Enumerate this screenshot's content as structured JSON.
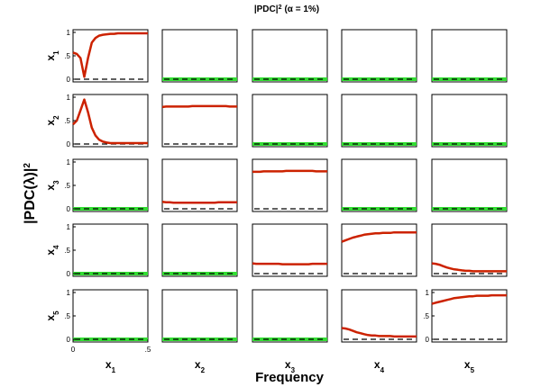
{
  "chart_data": {
    "type": "line",
    "title": "|PDC|",
    "title_superscript": "2",
    "title_suffix": "(α = 1%)",
    "ylabel": "|PDC(λ)|",
    "ylabel_superscript": "2",
    "xlabel": "Frequency",
    "variables": [
      "x",
      "x",
      "x",
      "x",
      "x"
    ],
    "variable_subscripts": [
      "1",
      "2",
      "3",
      "4",
      "5"
    ],
    "xlim": [
      0,
      0.5
    ],
    "ylim": [
      0,
      1
    ],
    "x_ticks": [
      "0",
      ".5"
    ],
    "y_ticks": [
      "0",
      ".5",
      "1"
    ],
    "grid": false,
    "colors": {
      "pdc_significant": "#cc2200",
      "pdc_nonsignificant": "#33dd33",
      "threshold": "#000000"
    },
    "x": [
      0,
      0.025,
      0.05,
      0.075,
      0.1,
      0.125,
      0.15,
      0.175,
      0.2,
      0.225,
      0.25,
      0.275,
      0.3,
      0.325,
      0.35,
      0.375,
      0.4,
      0.425,
      0.45,
      0.475,
      0.5
    ],
    "panels": [
      [
        {
          "significant": true,
          "threshold": 0.0,
          "values": [
            0.57,
            0.54,
            0.45,
            0.05,
            0.45,
            0.78,
            0.88,
            0.93,
            0.95,
            0.96,
            0.97,
            0.97,
            0.98,
            0.98,
            0.98,
            0.98,
            0.98,
            0.98,
            0.98,
            0.98,
            0.98
          ]
        },
        {
          "significant": false,
          "threshold": 0.0,
          "values": [
            0.0,
            0.0,
            0.0,
            0.0,
            0.0,
            0.0,
            0.0,
            0.0,
            0.0,
            0.0,
            0.0,
            0.0,
            0.0,
            0.0,
            0.0,
            0.0,
            0.0,
            0.0,
            0.0,
            0.0,
            0.0
          ]
        },
        {
          "significant": false,
          "threshold": 0.0,
          "values": [
            0.0,
            0.0,
            0.0,
            0.0,
            0.0,
            0.0,
            0.0,
            0.0,
            0.0,
            0.0,
            0.0,
            0.0,
            0.0,
            0.0,
            0.0,
            0.0,
            0.0,
            0.0,
            0.0,
            0.0,
            0.0
          ]
        },
        {
          "significant": false,
          "threshold": 0.0,
          "values": [
            0.0,
            0.0,
            0.0,
            0.0,
            0.0,
            0.0,
            0.0,
            0.0,
            0.0,
            0.0,
            0.0,
            0.0,
            0.0,
            0.0,
            0.0,
            0.0,
            0.0,
            0.0,
            0.0,
            0.0,
            0.0
          ]
        },
        {
          "significant": false,
          "threshold": 0.0,
          "values": [
            0.0,
            0.0,
            0.0,
            0.0,
            0.0,
            0.0,
            0.0,
            0.0,
            0.0,
            0.0,
            0.0,
            0.0,
            0.0,
            0.0,
            0.0,
            0.0,
            0.0,
            0.0,
            0.0,
            0.0,
            0.0
          ]
        }
      ],
      [
        {
          "significant": true,
          "threshold": 0.0,
          "values": [
            0.42,
            0.5,
            0.72,
            0.95,
            0.68,
            0.35,
            0.18,
            0.09,
            0.05,
            0.03,
            0.02,
            0.02,
            0.02,
            0.02,
            0.02,
            0.02,
            0.02,
            0.02,
            0.02,
            0.02,
            0.02
          ]
        },
        {
          "significant": true,
          "threshold": 0.0,
          "values": [
            0.79,
            0.8,
            0.8,
            0.8,
            0.8,
            0.8,
            0.8,
            0.8,
            0.81,
            0.81,
            0.81,
            0.81,
            0.81,
            0.81,
            0.81,
            0.81,
            0.81,
            0.81,
            0.8,
            0.8,
            0.8
          ]
        },
        {
          "significant": false,
          "threshold": 0.0,
          "values": [
            0.0,
            0.0,
            0.0,
            0.0,
            0.0,
            0.0,
            0.0,
            0.0,
            0.0,
            0.0,
            0.0,
            0.0,
            0.0,
            0.0,
            0.0,
            0.0,
            0.0,
            0.0,
            0.0,
            0.0,
            0.0
          ]
        },
        {
          "significant": false,
          "threshold": 0.0,
          "values": [
            0.0,
            0.0,
            0.0,
            0.0,
            0.0,
            0.0,
            0.0,
            0.0,
            0.0,
            0.0,
            0.0,
            0.0,
            0.0,
            0.0,
            0.0,
            0.0,
            0.0,
            0.0,
            0.0,
            0.0,
            0.0
          ]
        },
        {
          "significant": false,
          "threshold": 0.0,
          "values": [
            0.0,
            0.0,
            0.0,
            0.0,
            0.0,
            0.0,
            0.0,
            0.0,
            0.0,
            0.0,
            0.0,
            0.0,
            0.0,
            0.0,
            0.0,
            0.0,
            0.0,
            0.0,
            0.0,
            0.0,
            0.0
          ]
        }
      ],
      [
        {
          "significant": false,
          "threshold": 0.0,
          "values": [
            0.0,
            0.0,
            0.0,
            0.0,
            0.0,
            0.0,
            0.0,
            0.0,
            0.0,
            0.0,
            0.0,
            0.0,
            0.0,
            0.0,
            0.0,
            0.0,
            0.0,
            0.0,
            0.0,
            0.0,
            0.0
          ]
        },
        {
          "significant": true,
          "threshold": 0.0,
          "values": [
            0.15,
            0.14,
            0.14,
            0.13,
            0.13,
            0.13,
            0.13,
            0.13,
            0.13,
            0.13,
            0.13,
            0.13,
            0.13,
            0.13,
            0.13,
            0.14,
            0.14,
            0.14,
            0.14,
            0.14,
            0.14
          ]
        },
        {
          "significant": true,
          "threshold": 0.0,
          "values": [
            0.79,
            0.79,
            0.79,
            0.8,
            0.8,
            0.8,
            0.8,
            0.8,
            0.8,
            0.81,
            0.81,
            0.81,
            0.81,
            0.81,
            0.81,
            0.81,
            0.81,
            0.8,
            0.8,
            0.8,
            0.8
          ]
        },
        {
          "significant": false,
          "threshold": 0.0,
          "values": [
            0.0,
            0.0,
            0.0,
            0.0,
            0.0,
            0.0,
            0.0,
            0.0,
            0.0,
            0.0,
            0.0,
            0.0,
            0.0,
            0.0,
            0.0,
            0.0,
            0.0,
            0.0,
            0.0,
            0.0,
            0.0
          ]
        },
        {
          "significant": false,
          "threshold": 0.0,
          "values": [
            0.0,
            0.0,
            0.0,
            0.0,
            0.0,
            0.0,
            0.0,
            0.0,
            0.0,
            0.0,
            0.0,
            0.0,
            0.0,
            0.0,
            0.0,
            0.0,
            0.0,
            0.0,
            0.0,
            0.0,
            0.0
          ]
        }
      ],
      [
        {
          "significant": false,
          "threshold": 0.0,
          "values": [
            0.0,
            0.0,
            0.0,
            0.0,
            0.0,
            0.0,
            0.0,
            0.0,
            0.0,
            0.0,
            0.0,
            0.0,
            0.0,
            0.0,
            0.0,
            0.0,
            0.0,
            0.0,
            0.0,
            0.0,
            0.0
          ]
        },
        {
          "significant": false,
          "threshold": 0.0,
          "values": [
            0.0,
            0.0,
            0.0,
            0.0,
            0.0,
            0.0,
            0.0,
            0.0,
            0.0,
            0.0,
            0.0,
            0.0,
            0.0,
            0.0,
            0.0,
            0.0,
            0.0,
            0.0,
            0.0,
            0.0,
            0.0
          ]
        },
        {
          "significant": true,
          "threshold": 0.0,
          "values": [
            0.22,
            0.21,
            0.21,
            0.21,
            0.21,
            0.21,
            0.21,
            0.21,
            0.2,
            0.2,
            0.2,
            0.2,
            0.2,
            0.2,
            0.2,
            0.2,
            0.21,
            0.21,
            0.21,
            0.21,
            0.21
          ]
        },
        {
          "significant": true,
          "threshold": 0.0,
          "values": [
            0.68,
            0.71,
            0.74,
            0.77,
            0.79,
            0.81,
            0.83,
            0.84,
            0.85,
            0.86,
            0.86,
            0.87,
            0.87,
            0.87,
            0.88,
            0.88,
            0.88,
            0.88,
            0.88,
            0.88,
            0.88
          ]
        },
        {
          "significant": true,
          "threshold": 0.0,
          "values": [
            0.22,
            0.21,
            0.19,
            0.16,
            0.13,
            0.11,
            0.09,
            0.08,
            0.07,
            0.06,
            0.06,
            0.05,
            0.05,
            0.05,
            0.05,
            0.05,
            0.05,
            0.05,
            0.05,
            0.05,
            0.05
          ]
        }
      ],
      [
        {
          "significant": false,
          "threshold": 0.0,
          "values": [
            0.0,
            0.0,
            0.0,
            0.0,
            0.0,
            0.0,
            0.0,
            0.0,
            0.0,
            0.0,
            0.0,
            0.0,
            0.0,
            0.0,
            0.0,
            0.0,
            0.0,
            0.0,
            0.0,
            0.0,
            0.0
          ]
        },
        {
          "significant": false,
          "threshold": 0.0,
          "values": [
            0.0,
            0.0,
            0.0,
            0.0,
            0.0,
            0.0,
            0.0,
            0.0,
            0.0,
            0.0,
            0.0,
            0.0,
            0.0,
            0.0,
            0.0,
            0.0,
            0.0,
            0.0,
            0.0,
            0.0,
            0.0
          ]
        },
        {
          "significant": false,
          "threshold": 0.0,
          "values": [
            0.0,
            0.0,
            0.0,
            0.0,
            0.0,
            0.0,
            0.0,
            0.0,
            0.0,
            0.0,
            0.0,
            0.0,
            0.0,
            0.0,
            0.0,
            0.0,
            0.0,
            0.0,
            0.0,
            0.0,
            0.0
          ]
        },
        {
          "significant": true,
          "threshold": 0.0,
          "values": [
            0.24,
            0.23,
            0.21,
            0.18,
            0.15,
            0.13,
            0.11,
            0.09,
            0.08,
            0.08,
            0.07,
            0.07,
            0.07,
            0.07,
            0.06,
            0.06,
            0.06,
            0.06,
            0.06,
            0.06,
            0.06
          ]
        },
        {
          "significant": true,
          "threshold": 0.0,
          "values": [
            0.76,
            0.78,
            0.8,
            0.82,
            0.84,
            0.86,
            0.88,
            0.89,
            0.9,
            0.91,
            0.92,
            0.92,
            0.93,
            0.93,
            0.93,
            0.93,
            0.94,
            0.94,
            0.94,
            0.94,
            0.94
          ]
        }
      ]
    ]
  }
}
